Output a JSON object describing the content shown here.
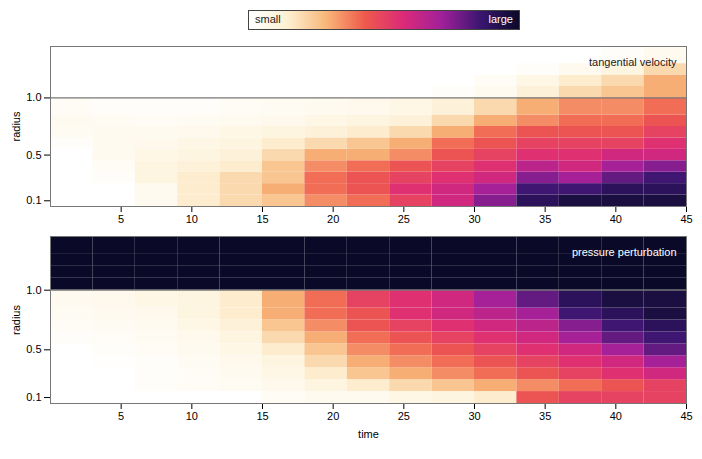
{
  "chart_data": {
    "type": "heatmap",
    "colorbar": {
      "range": [
        0,
        1
      ],
      "ticks": [
        {
          "value": 0,
          "label": "small"
        },
        {
          "value": 1,
          "label": "large"
        }
      ]
    },
    "panels": [
      {
        "title": "tangential velocity",
        "ylabel": "radius",
        "xlim": [
          0,
          45
        ],
        "xticks": [
          5,
          10,
          15,
          20,
          25,
          30,
          35,
          40,
          45
        ],
        "ylim": [
          0.05,
          1.45
        ],
        "yticks": [
          0.1,
          0.5,
          {
            "value": 1,
            "label": "1.0"
          }
        ],
        "hline": 1,
        "time_edges": [
          0,
          3,
          6,
          9,
          12,
          15,
          18,
          21,
          24,
          27,
          30,
          33,
          36,
          39,
          42,
          45
        ],
        "radius_edges": [
          0.05,
          0.15,
          0.25,
          0.35,
          0.45,
          0.55,
          0.65,
          0.75,
          0.85,
          1.0,
          1.1,
          1.2,
          1.3,
          1.45
        ],
        "cells": [
          [
            0,
            0,
            0.05,
            0.15,
            0.2,
            0.25,
            0.35,
            0.4,
            0.5,
            0.6,
            0.75,
            0.9,
            0.95,
            0.95,
            0.95
          ],
          [
            0,
            0,
            0.05,
            0.15,
            0.2,
            0.3,
            0.4,
            0.45,
            0.55,
            0.6,
            0.7,
            0.85,
            0.85,
            0.9,
            0.9
          ],
          [
            0,
            0.02,
            0.1,
            0.15,
            0.2,
            0.25,
            0.4,
            0.45,
            0.5,
            0.55,
            0.6,
            0.75,
            0.7,
            0.8,
            0.85
          ],
          [
            0,
            0.03,
            0.1,
            0.12,
            0.15,
            0.25,
            0.35,
            0.4,
            0.45,
            0.5,
            0.55,
            0.65,
            0.6,
            0.7,
            0.75
          ],
          [
            0,
            0.05,
            0.08,
            0.1,
            0.12,
            0.2,
            0.3,
            0.3,
            0.35,
            0.45,
            0.5,
            0.55,
            0.55,
            0.6,
            0.6
          ],
          [
            0.02,
            0.05,
            0.06,
            0.08,
            0.1,
            0.15,
            0.2,
            0.25,
            0.3,
            0.4,
            0.45,
            0.5,
            0.5,
            0.5,
            0.55
          ],
          [
            0.04,
            0.05,
            0.05,
            0.06,
            0.08,
            0.1,
            0.12,
            0.15,
            0.2,
            0.3,
            0.4,
            0.45,
            0.45,
            0.45,
            0.5
          ],
          [
            0.05,
            0.04,
            0.03,
            0.04,
            0.05,
            0.06,
            0.08,
            0.1,
            0.12,
            0.2,
            0.3,
            0.35,
            0.4,
            0.4,
            0.45
          ],
          [
            0.03,
            0.02,
            0.02,
            0.02,
            0.03,
            0.04,
            0.05,
            0.06,
            0.08,
            0.12,
            0.2,
            0.3,
            0.35,
            0.35,
            0.4
          ],
          [
            0,
            0,
            0,
            0,
            0,
            0,
            0,
            0,
            0,
            0.02,
            0.05,
            0.12,
            0.2,
            0.25,
            0.3
          ],
          [
            0,
            0,
            0,
            0,
            0,
            0,
            0,
            0,
            0,
            0,
            0.03,
            0.08,
            0.15,
            0.2,
            0.3
          ],
          [
            0,
            0,
            0,
            0,
            0,
            0,
            0,
            0,
            0,
            0,
            0,
            0.02,
            0.05,
            0.1,
            0.2
          ],
          [
            0,
            0,
            0,
            0,
            0,
            0,
            0,
            0,
            0,
            0,
            0,
            0,
            0,
            0.02,
            0.05
          ]
        ]
      },
      {
        "title": "pressure perturbation",
        "ylabel": "radius",
        "xlabel": "time",
        "xlim": [
          0,
          45
        ],
        "xticks": [
          5,
          10,
          15,
          20,
          25,
          30,
          35,
          40,
          45
        ],
        "ylim": [
          0.05,
          1.45
        ],
        "yticks": [
          0.1,
          0.5,
          {
            "value": 1,
            "label": "1.0"
          }
        ],
        "hline": 1,
        "time_edges": [
          0,
          3,
          6,
          9,
          12,
          15,
          18,
          21,
          24,
          27,
          30,
          33,
          36,
          39,
          42,
          45
        ],
        "radius_edges": [
          0.05,
          0.15,
          0.25,
          0.35,
          0.45,
          0.55,
          0.65,
          0.75,
          0.85,
          1.0,
          1.1,
          1.2,
          1.3,
          1.45
        ],
        "cells": [
          [
            0,
            0,
            0,
            0,
            0,
            0.03,
            0.05,
            0.05,
            0.08,
            0.1,
            0.15,
            0.45,
            0.5,
            0.5,
            0.5
          ],
          [
            0,
            0,
            0.02,
            0.03,
            0.04,
            0.06,
            0.1,
            0.15,
            0.2,
            0.25,
            0.3,
            0.35,
            0.4,
            0.45,
            0.5
          ],
          [
            0,
            0,
            0.02,
            0.03,
            0.05,
            0.08,
            0.15,
            0.25,
            0.3,
            0.35,
            0.4,
            0.45,
            0.5,
            0.55,
            0.6
          ],
          [
            0,
            0.01,
            0.02,
            0.04,
            0.06,
            0.1,
            0.2,
            0.3,
            0.35,
            0.4,
            0.45,
            0.5,
            0.55,
            0.6,
            0.7
          ],
          [
            0,
            0.02,
            0.03,
            0.05,
            0.08,
            0.15,
            0.25,
            0.35,
            0.4,
            0.45,
            0.5,
            0.55,
            0.6,
            0.7,
            0.8
          ],
          [
            0.02,
            0.03,
            0.04,
            0.06,
            0.1,
            0.2,
            0.3,
            0.4,
            0.45,
            0.5,
            0.55,
            0.6,
            0.7,
            0.8,
            0.85
          ],
          [
            0.03,
            0.04,
            0.05,
            0.08,
            0.12,
            0.25,
            0.35,
            0.45,
            0.5,
            0.55,
            0.6,
            0.65,
            0.75,
            0.85,
            0.9
          ],
          [
            0.04,
            0.05,
            0.06,
            0.1,
            0.15,
            0.3,
            0.4,
            0.45,
            0.55,
            0.6,
            0.65,
            0.7,
            0.85,
            0.9,
            0.95
          ],
          [
            0.05,
            0.06,
            0.08,
            0.1,
            0.15,
            0.3,
            0.4,
            0.5,
            0.55,
            0.6,
            0.7,
            0.8,
            0.9,
            0.95,
            0.95
          ],
          [
            1,
            1,
            1,
            1,
            1,
            1,
            1,
            1,
            1,
            1,
            1,
            1,
            1,
            1,
            1
          ],
          [
            1,
            1,
            1,
            1,
            1,
            1,
            1,
            1,
            1,
            1,
            1,
            1,
            1,
            1,
            1
          ],
          [
            1,
            1,
            1,
            1,
            1,
            1,
            1,
            1,
            1,
            1,
            1,
            1,
            1,
            1,
            1
          ],
          [
            1,
            1,
            1,
            1,
            1,
            1,
            1,
            1,
            1,
            1,
            1,
            1,
            1,
            1,
            1
          ]
        ]
      }
    ]
  }
}
